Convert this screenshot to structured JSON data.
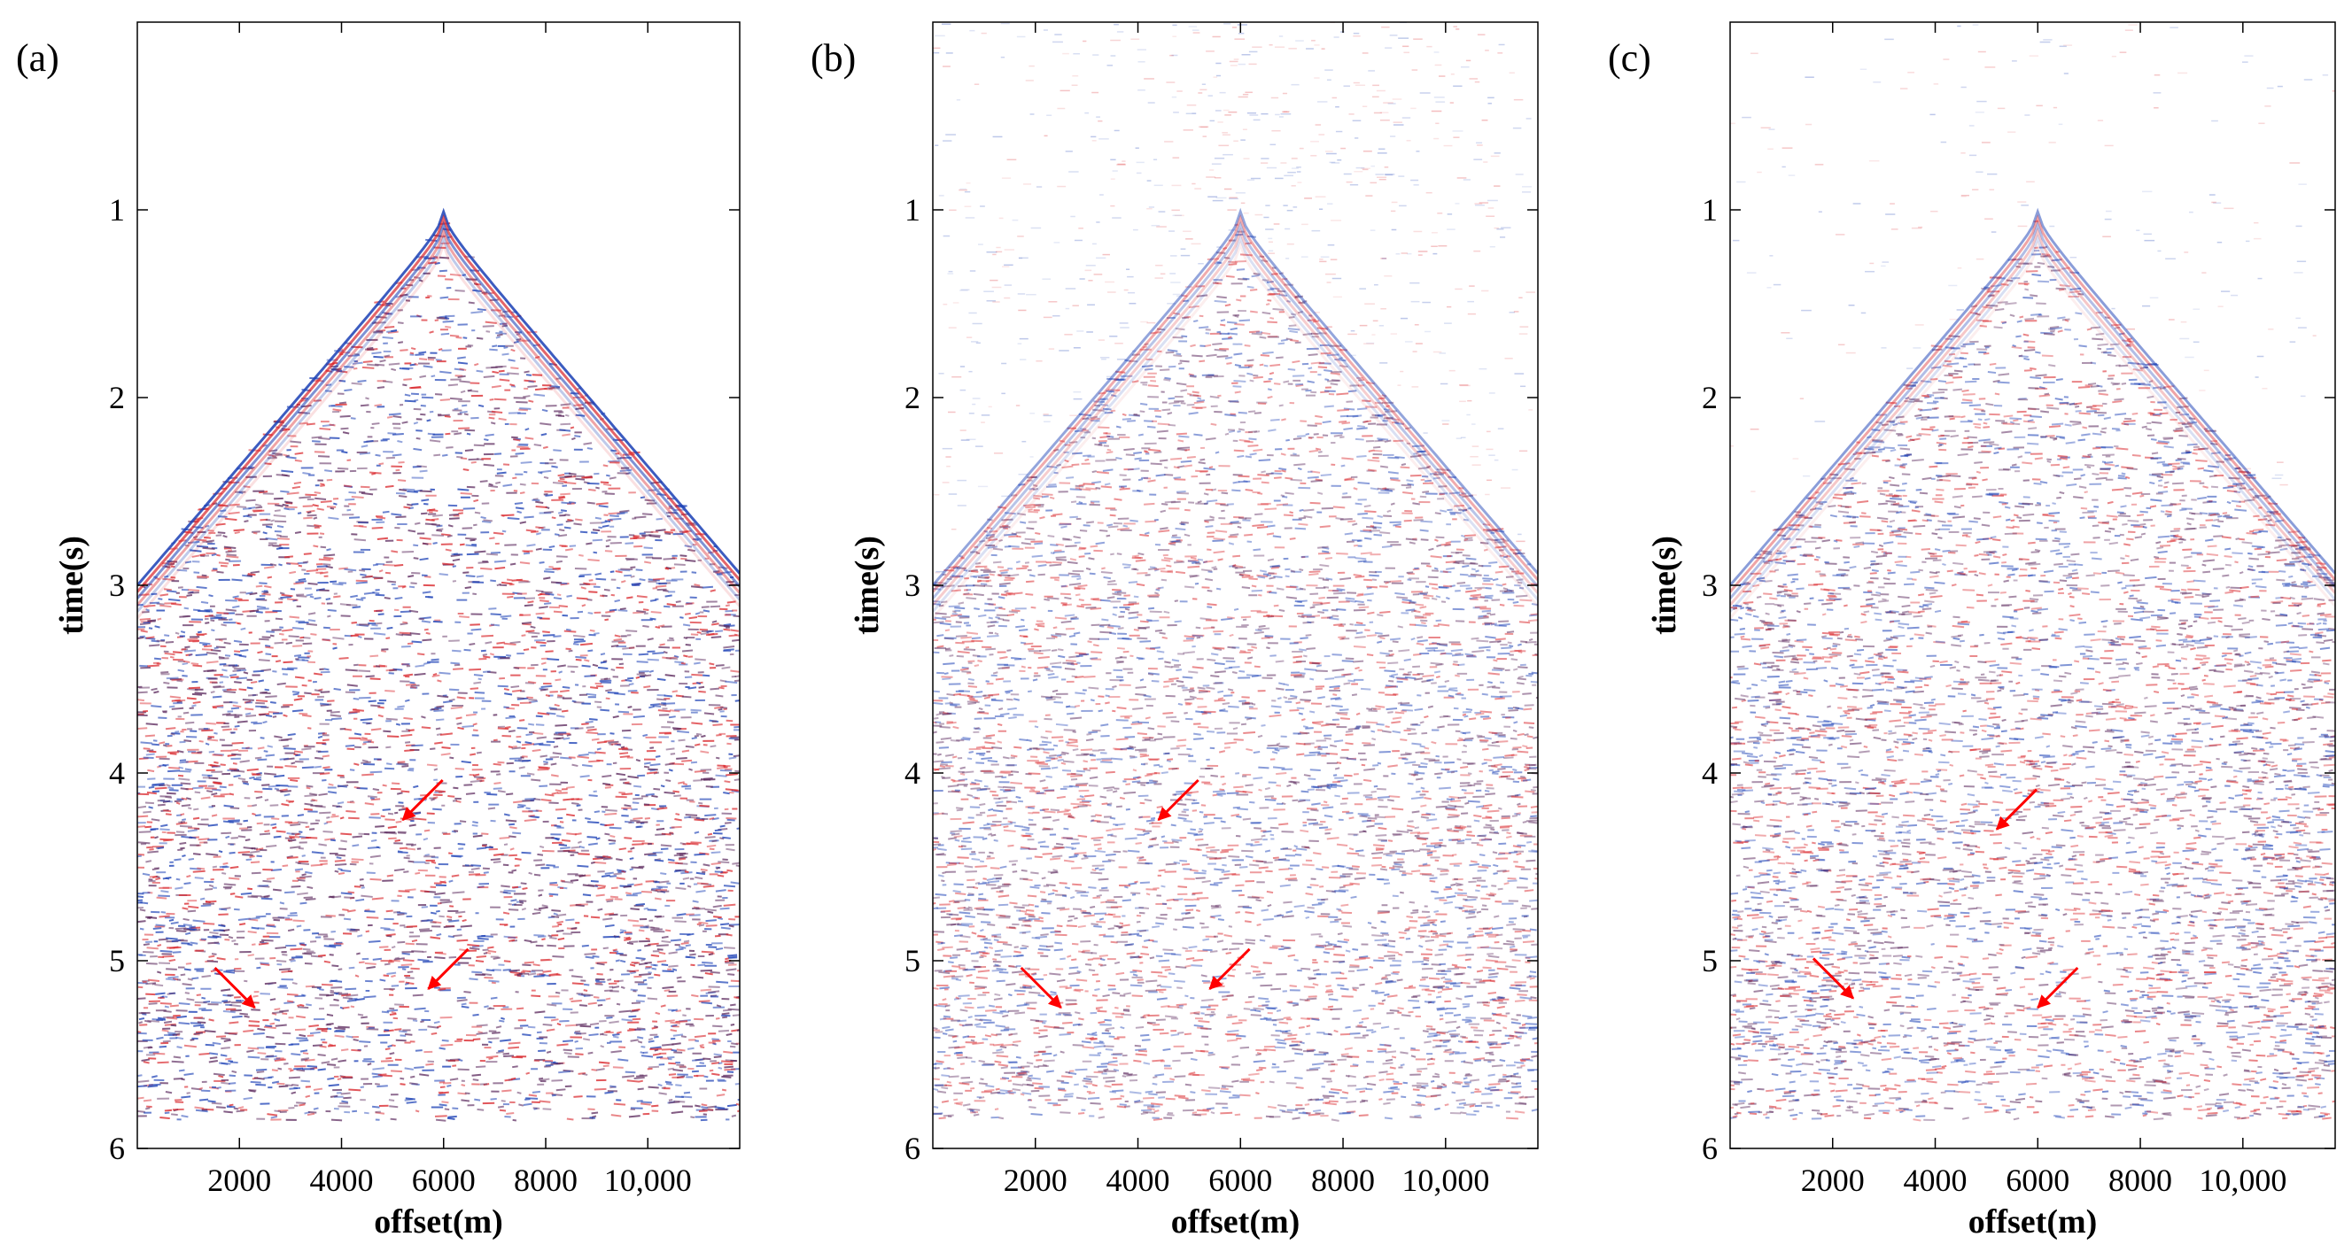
{
  "chart_data": [
    {
      "type": "heatmap",
      "panel_label": "(a)",
      "xlabel": "offset(m)",
      "ylabel": "time(s)",
      "xlim": [
        0,
        11800
      ],
      "ylim": [
        6,
        0
      ],
      "x_ticks": [
        2000,
        4000,
        6000,
        8000,
        10000
      ],
      "x_tick_labels": [
        "2000",
        "4000",
        "6000",
        "8000",
        "10,000"
      ],
      "y_ticks": [
        1,
        2,
        3,
        4,
        5,
        6
      ],
      "y_tick_labels": [
        "1",
        "2",
        "3",
        "4",
        "5",
        "6"
      ],
      "first_arrival": {
        "apex_offset": 6000,
        "apex_time": 1.0,
        "edge_time": 3.0
      },
      "energy_level": 1.0,
      "top_noise": 0.0,
      "arrows": [
        {
          "offset": 5200,
          "time": 4.25
        },
        {
          "offset": 2300,
          "time": 5.25
        },
        {
          "offset": 5700,
          "time": 5.15
        }
      ]
    },
    {
      "type": "heatmap",
      "panel_label": "(b)",
      "xlabel": "offset(m)",
      "ylabel": "time(s)",
      "xlim": [
        0,
        11800
      ],
      "ylim": [
        6,
        0
      ],
      "x_ticks": [
        2000,
        4000,
        6000,
        8000,
        10000
      ],
      "x_tick_labels": [
        "2000",
        "4000",
        "6000",
        "8000",
        "10,000"
      ],
      "y_ticks": [
        1,
        2,
        3,
        4,
        5,
        6
      ],
      "y_tick_labels": [
        "1",
        "2",
        "3",
        "4",
        "5",
        "6"
      ],
      "first_arrival": {
        "apex_offset": 6000,
        "apex_time": 1.0,
        "edge_time": 3.0
      },
      "energy_level": 0.55,
      "top_noise": 0.35,
      "arrows": [
        {
          "offset": 4400,
          "time": 4.25
        },
        {
          "offset": 2500,
          "time": 5.25
        },
        {
          "offset": 5400,
          "time": 5.15
        }
      ]
    },
    {
      "type": "heatmap",
      "panel_label": "(c)",
      "xlabel": "offset(m)",
      "ylabel": "time(s)",
      "xlim": [
        0,
        11800
      ],
      "ylim": [
        6,
        0
      ],
      "x_ticks": [
        2000,
        4000,
        6000,
        8000,
        10000
      ],
      "x_tick_labels": [
        "2000",
        "4000",
        "6000",
        "8000",
        "10,000"
      ],
      "y_ticks": [
        1,
        2,
        3,
        4,
        5,
        6
      ],
      "y_tick_labels": [
        "1",
        "2",
        "3",
        "4",
        "5",
        "6"
      ],
      "first_arrival": {
        "apex_offset": 6000,
        "apex_time": 1.0,
        "edge_time": 3.0
      },
      "energy_level": 0.6,
      "top_noise": 0.1,
      "arrows": [
        {
          "offset": 5200,
          "time": 4.3
        },
        {
          "offset": 2400,
          "time": 5.2
        },
        {
          "offset": 6000,
          "time": 5.25
        }
      ]
    }
  ],
  "colors": {
    "positive": "#1a3fb5",
    "negative": "#d9262b",
    "mixed": "#5c2a5e",
    "arrow": "#ff0000",
    "axis": "#000000"
  }
}
